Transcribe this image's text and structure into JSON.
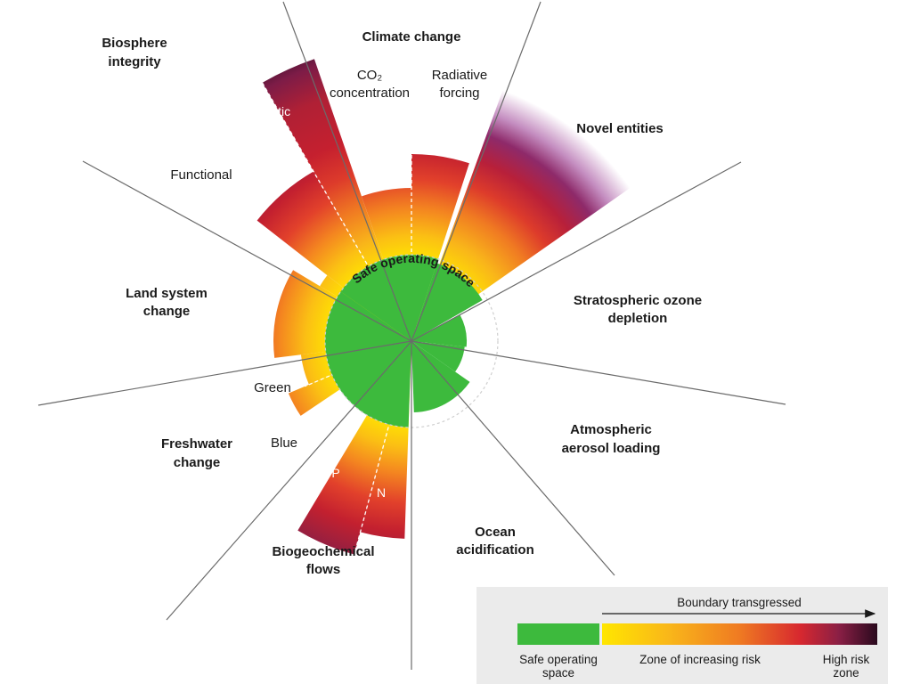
{
  "diagram": {
    "center_label": "Safe operating space",
    "boundaries": [
      {
        "id": "climate",
        "title": "Climate change",
        "sub": [
          "CO₂ concentration",
          "Radiative forcing"
        ]
      },
      {
        "id": "novel",
        "title": "Novel entities"
      },
      {
        "id": "ozone",
        "title": "Stratospheric ozone depletion"
      },
      {
        "id": "aerosol",
        "title": "Atmospheric aerosol loading"
      },
      {
        "id": "ocean",
        "title": "Ocean acidification"
      },
      {
        "id": "biogeo",
        "title": "Biogeochemical flows",
        "sub": [
          "P",
          "N"
        ]
      },
      {
        "id": "fresh",
        "title": "Freshwater change",
        "sub": [
          "Green",
          "Blue"
        ]
      },
      {
        "id": "land",
        "title": "Land system change"
      },
      {
        "id": "bio",
        "title": "Biosphere integrity",
        "sub": [
          "Functional",
          "Genetic"
        ]
      }
    ],
    "labels": {
      "climate_title": "Climate change",
      "co2_line1": "CO₂",
      "co2_line2": "concentration",
      "rf_line1": "Radiative",
      "rf_line2": "forcing",
      "novel": "Novel entities",
      "ozone_line1": "Stratospheric ozone",
      "ozone_line2": "depletion",
      "aerosol_line1": "Atmospheric",
      "aerosol_line2": "aerosol loading",
      "ocean_line1": "Ocean",
      "ocean_line2": "acidification",
      "biogeo_line1": "Biogeochemical",
      "biogeo_line2": "flows",
      "p": "P",
      "n": "N",
      "fresh_line1": "Freshwater",
      "fresh_line2": "change",
      "green": "Green",
      "blue": "Blue",
      "land_line1": "Land system",
      "land_line2": "change",
      "bio_line1": "Biosphere",
      "bio_line2": "integrity",
      "functional": "Functional",
      "genetic": "Genetic"
    }
  },
  "legend": {
    "arrow_label": "Boundary transgressed",
    "safe_line1": "Safe operating",
    "safe_line2": "space",
    "zone": "Zone of increasing risk",
    "high_line1": "High risk",
    "high_line2": "zone"
  },
  "colors": {
    "safe_green": "#3dba3d",
    "yellow": "#ffe600",
    "orange": "#f7941d",
    "red": "#d7282f",
    "purple": "#6b1d4a",
    "dark": "#2a0a1e",
    "legend_bg": "#ebebeb"
  }
}
